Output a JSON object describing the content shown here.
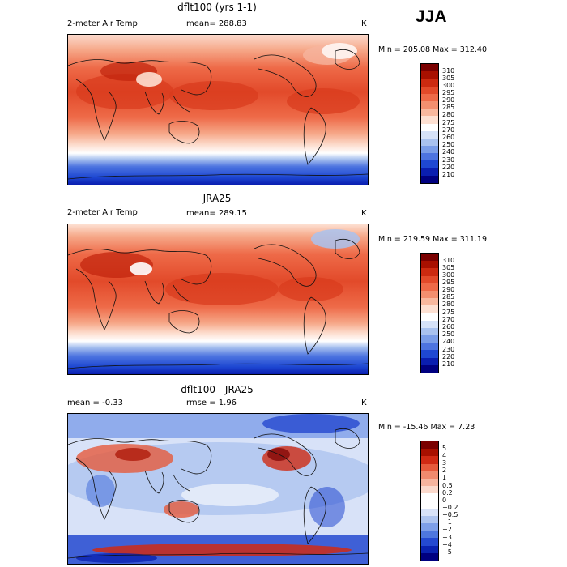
{
  "season": "JJA",
  "panels": [
    {
      "title": "dflt100 (yrs 1-1)",
      "left_label": "2-meter Air Temp",
      "mean_text": "mean= 288.83",
      "unit": "K",
      "minmax": "Min = 205.08 Max = 312.40",
      "cbar_labels": [
        "310",
        "305",
        "300",
        "295",
        "290",
        "285",
        "280",
        "275",
        "270",
        "260",
        "250",
        "240",
        "230",
        "220",
        "210"
      ]
    },
    {
      "title": "JRA25",
      "left_label": "2-meter Air Temp",
      "mean_text": "mean= 289.15",
      "unit": "K",
      "minmax": "Min = 219.59 Max = 311.19",
      "cbar_labels": [
        "310",
        "305",
        "300",
        "295",
        "290",
        "285",
        "280",
        "275",
        "270",
        "260",
        "250",
        "240",
        "230",
        "220",
        "210"
      ]
    },
    {
      "title": "dflt100 - JRA25",
      "left_label": "mean =   -0.33",
      "mean_text": "rmse =    1.96",
      "unit": "K",
      "minmax": "Min = -15.46 Max =   7.23",
      "cbar_labels": [
        "5",
        "4",
        "3",
        "2",
        "1",
        "0.5",
        "0.2",
        "0",
        "−0.2",
        "−0.5",
        "−1",
        "−2",
        "−3",
        "−4",
        "−5"
      ]
    }
  ],
  "colors": {
    "temp_scale": [
      "#7a0000",
      "#a81000",
      "#cc2a10",
      "#e24a2a",
      "#ee6a48",
      "#f38f6f",
      "#f8b89e",
      "#fde0d2",
      "#ffffff",
      "#d6e2f8",
      "#a9c2ef",
      "#7a9de8",
      "#4d74e0",
      "#1e48d2",
      "#0a1eb0",
      "#000080"
    ],
    "diff_scale": [
      "#7a0000",
      "#a81000",
      "#d02a14",
      "#e65a3c",
      "#f08a6e",
      "#f6b49e",
      "#fbd9cc",
      "#ffffff",
      "#ffffff",
      "#d8e2f8",
      "#aec4ef",
      "#7e9fe8",
      "#4e77de",
      "#2449d0",
      "#0a22b0",
      "#000080"
    ]
  }
}
